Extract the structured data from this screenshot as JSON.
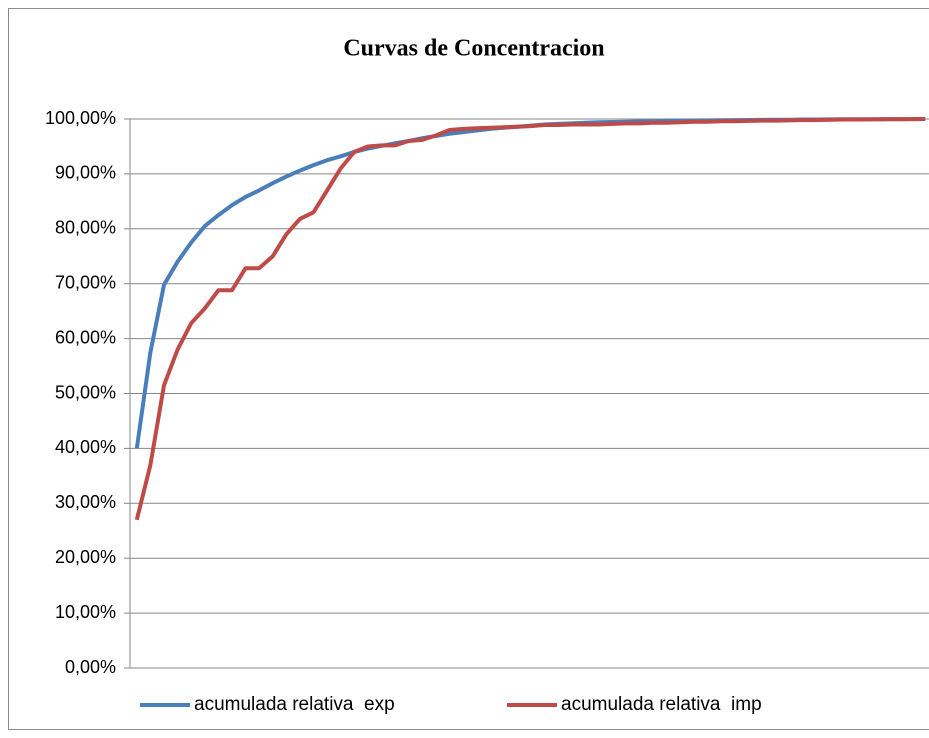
{
  "chart_data": {
    "type": "line",
    "title": "Curvas de Concentracion",
    "categories": [
      null,
      null,
      null,
      null,
      null,
      null,
      null,
      null,
      null,
      null,
      null,
      null,
      null,
      null,
      null,
      null,
      null,
      null,
      null,
      null,
      null,
      null,
      null,
      null,
      null,
      null,
      null,
      null,
      null,
      null,
      null,
      null,
      null,
      null,
      null,
      null,
      null,
      null,
      null,
      null,
      null,
      null,
      null,
      null,
      null,
      null,
      null,
      null,
      null,
      null,
      null,
      null,
      null,
      null,
      null,
      null,
      null,
      null,
      null
    ],
    "series": [
      {
        "name": "acumulada relativa  exp",
        "color": "#4a7ebb",
        "values": [
          40,
          57.5,
          69.8,
          74,
          77.5,
          80.5,
          82.5,
          84.3,
          85.8,
          87,
          88.3,
          89.5,
          90.6,
          91.6,
          92.5,
          93.2,
          94,
          94.6,
          95.1,
          95.6,
          96,
          96.5,
          96.9,
          97.3,
          97.6,
          97.9,
          98.2,
          98.4,
          98.6,
          98.8,
          99,
          99.1,
          99.2,
          99.3,
          99.4,
          99.45,
          99.5,
          99.55,
          99.6,
          99.65,
          99.7,
          99.72,
          99.75,
          99.78,
          99.8,
          99.82,
          99.84,
          99.86,
          99.88,
          99.9,
          99.91,
          99.92,
          99.94,
          99.95,
          99.96,
          99.97,
          99.98,
          99.99,
          100
        ]
      },
      {
        "name": "acumulada relativa  imp",
        "color": "#be4b48",
        "values": [
          27,
          37,
          51.5,
          58,
          62.8,
          65.5,
          68.8,
          68.8,
          72.8,
          72.8,
          75,
          79,
          81.8,
          83,
          87,
          91,
          94,
          95,
          95.2,
          95.2,
          96,
          96.2,
          97,
          98,
          98.2,
          98.3,
          98.4,
          98.5,
          98.6,
          98.7,
          98.9,
          98.9,
          99,
          99,
          99,
          99.1,
          99.2,
          99.2,
          99.3,
          99.3,
          99.4,
          99.5,
          99.5,
          99.6,
          99.6,
          99.65,
          99.7,
          99.7,
          99.75,
          99.8,
          99.8,
          99.85,
          99.9,
          99.9,
          99.92,
          99.95,
          99.97,
          99.98,
          100
        ]
      }
    ],
    "ylim": [
      0,
      100
    ],
    "yticks": [
      {
        "value": 0,
        "label": "0,00%"
      },
      {
        "value": 10,
        "label": "10,00%"
      },
      {
        "value": 20,
        "label": "20,00%"
      },
      {
        "value": 30,
        "label": "30,00%"
      },
      {
        "value": 40,
        "label": "40,00%"
      },
      {
        "value": 50,
        "label": "50,00%"
      },
      {
        "value": 60,
        "label": "60,00%"
      },
      {
        "value": 70,
        "label": "70,00%"
      },
      {
        "value": 80,
        "label": "80,00%"
      },
      {
        "value": 90,
        "label": "90,00%"
      },
      {
        "value": 100,
        "label": "100,00%"
      }
    ],
    "grid": true,
    "legend": "bottom"
  }
}
